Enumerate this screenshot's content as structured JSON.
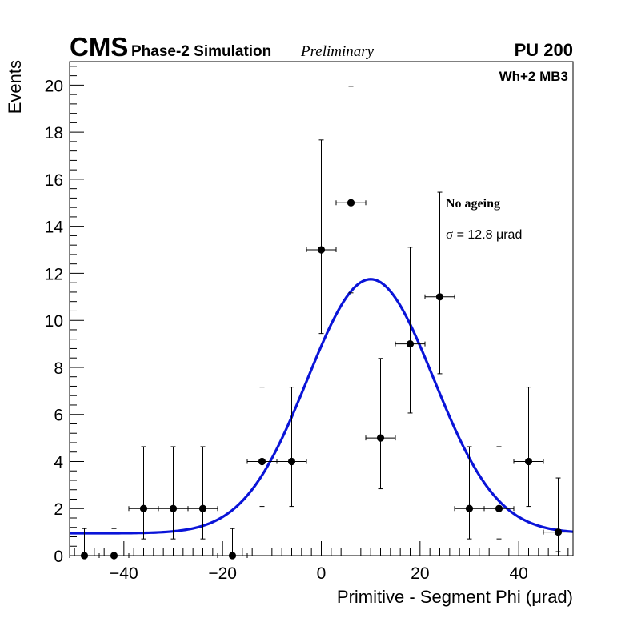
{
  "header": {
    "experiment": "CMS",
    "subtitle": "Phase-2 Simulation",
    "status": "Preliminary",
    "pileup": "PU 200",
    "region": "Wh+2 MB3"
  },
  "legend": {
    "condition": "No ageing",
    "sigma_symbol": "σ",
    "sigma_text": " = 12.8  μrad"
  },
  "colors": {
    "fit": "#0a14d8",
    "points": "#000000",
    "frame": "#000000"
  },
  "chart_data": {
    "type": "scatter",
    "title": "",
    "xlabel": "Primitive - Segment Phi (μrad)",
    "ylabel": "Events",
    "xlim": [
      -51,
      51
    ],
    "ylim": [
      0,
      21
    ],
    "x_major_ticks": [
      -40,
      -20,
      0,
      20,
      40
    ],
    "x_tick_labels": [
      "−40",
      "−20",
      "0",
      "20",
      "40"
    ],
    "y_major_ticks": [
      0,
      2,
      4,
      6,
      8,
      10,
      12,
      14,
      16,
      18,
      20
    ],
    "y_tick_labels": [
      "0",
      "2",
      "4",
      "6",
      "8",
      "10",
      "12",
      "14",
      "16",
      "18",
      "20"
    ],
    "bin_width": 6,
    "series": [
      {
        "name": "data",
        "x": [
          -48,
          -42,
          -36,
          -30,
          -24,
          -18,
          -12,
          -6,
          0,
          6,
          12,
          18,
          24,
          30,
          36,
          42,
          48
        ],
        "values": [
          0,
          0,
          2,
          2,
          2,
          0,
          4,
          4,
          13,
          15,
          5,
          9,
          11,
          2,
          2,
          4,
          1
        ],
        "err_low": [
          0,
          0,
          1.29,
          1.29,
          1.29,
          0,
          1.91,
          1.91,
          3.56,
          3.83,
          2.16,
          2.94,
          3.27,
          1.29,
          1.29,
          1.91,
          0.83
        ],
        "err_high": [
          1.15,
          1.15,
          2.63,
          2.63,
          2.63,
          1.15,
          3.16,
          3.16,
          4.67,
          4.95,
          3.38,
          4.11,
          4.45,
          2.63,
          2.63,
          3.16,
          2.3
        ]
      }
    ],
    "fit": {
      "name": "Gaussian fit",
      "model": "constant + gaussian",
      "constant": 0.95,
      "amplitude": 10.8,
      "mean": 10,
      "sigma": 12.8,
      "x_range": [
        -51,
        51
      ]
    }
  }
}
